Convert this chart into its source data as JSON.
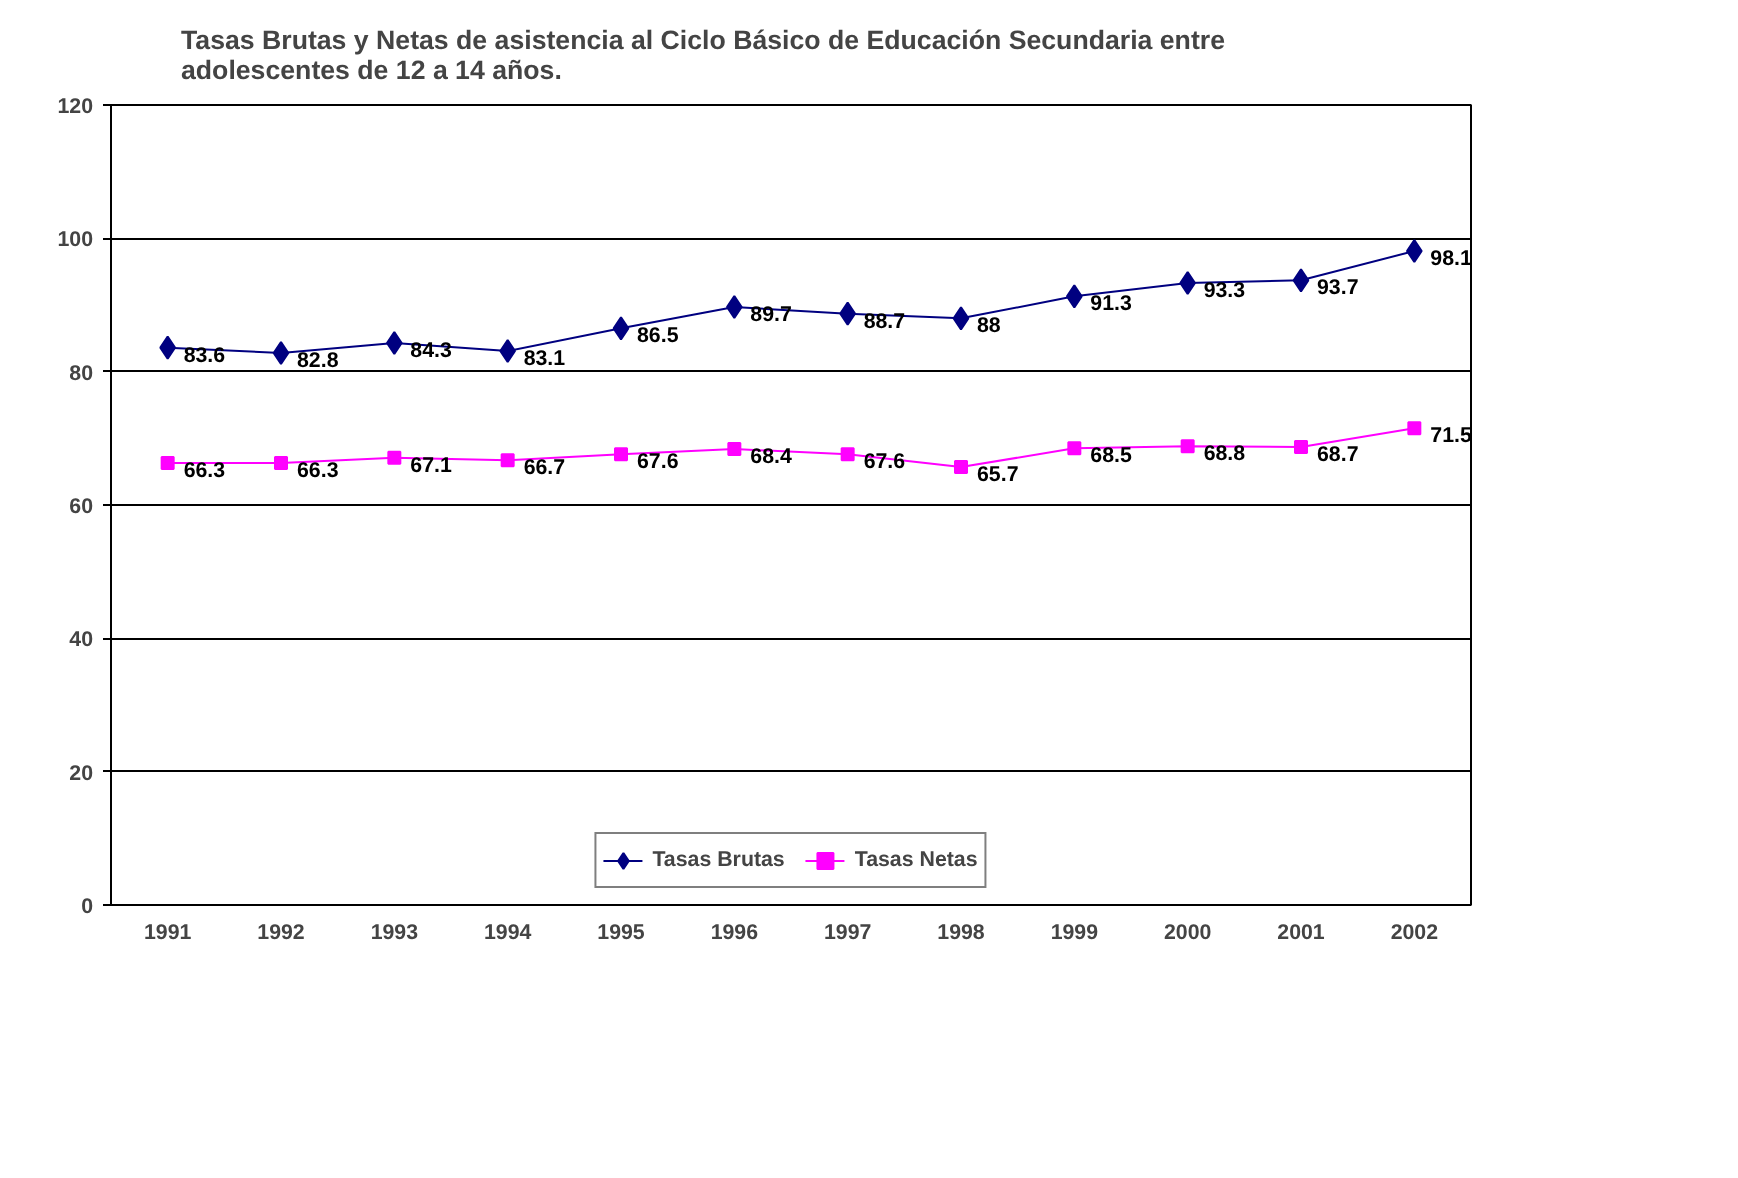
{
  "chart_data": {
    "type": "line",
    "title": "Tasas Brutas y Netas de asistencia al Ciclo Básico de Educación Secundaria entre adolescentes de 12 a 14 años.",
    "categories": [
      "1991",
      "1992",
      "1993",
      "1994",
      "1995",
      "1996",
      "1997",
      "1998",
      "1999",
      "2000",
      "2001",
      "2002"
    ],
    "series": [
      {
        "name": "Tasas Brutas",
        "color": "#000080",
        "marker": "diamond",
        "values": [
          83.6,
          82.8,
          84.3,
          83.1,
          86.5,
          89.7,
          88.7,
          88,
          91.3,
          93.3,
          93.7,
          98.1
        ]
      },
      {
        "name": "Tasas Netas",
        "color": "#ff00ff",
        "marker": "square",
        "values": [
          66.3,
          66.3,
          67.1,
          66.7,
          67.6,
          68.4,
          67.6,
          65.7,
          68.5,
          68.8,
          68.7,
          71.5
        ]
      }
    ],
    "ylim": [
      0,
      120
    ],
    "yticks": [
      0,
      20,
      40,
      60,
      80,
      100,
      120
    ],
    "grid": "y",
    "legend": "bottom",
    "data_labels": true,
    "line_style": "solid"
  }
}
